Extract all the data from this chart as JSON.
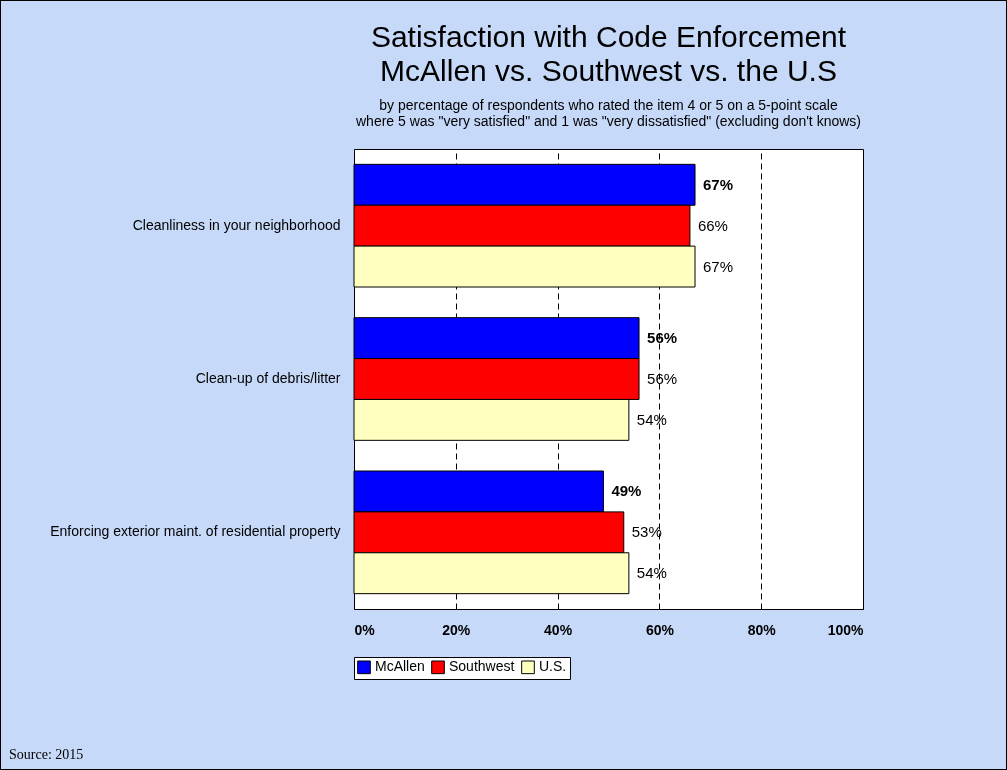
{
  "chart_data": {
    "type": "bar",
    "orientation": "horizontal",
    "title": "Satisfaction with Code Enforcement\nMcAllen vs. Southwest vs. the U.S",
    "subtitle": "by percentage of respondents who rated the item 4 or 5 on a 5-point scale\nwhere 5 was \"very satisfied\" and 1 was \"very dissatisfied\" (excluding don't knows)",
    "categories": [
      "Cleanliness in your neighborhood",
      "Clean-up of debris/litter",
      "Enforcing exterior maint. of residential property"
    ],
    "series": [
      {
        "name": "McAllen",
        "color": "#0000ff",
        "values": [
          67,
          56,
          49
        ]
      },
      {
        "name": "Southwest",
        "color": "#ff0000",
        "values": [
          66,
          56,
          53
        ]
      },
      {
        "name": "U.S.",
        "color": "#ffffc0",
        "values": [
          67,
          54,
          54
        ]
      }
    ],
    "xlim": [
      0,
      100
    ],
    "xticks": [
      {
        "value": 0,
        "label": "0%"
      },
      {
        "value": 20,
        "label": "20%"
      },
      {
        "value": 40,
        "label": "40%"
      },
      {
        "value": 60,
        "label": "60%"
      },
      {
        "value": 80,
        "label": "80%"
      },
      {
        "value": 100,
        "label": "100%"
      }
    ],
    "value_labels": [
      [
        "67%",
        "56%",
        "49%"
      ],
      [
        "66%",
        "56%",
        "53%"
      ],
      [
        "67%",
        "54%",
        "54%"
      ]
    ],
    "grid": "x",
    "legend": "bottom",
    "annotations": [
      "Source:  2015"
    ]
  }
}
